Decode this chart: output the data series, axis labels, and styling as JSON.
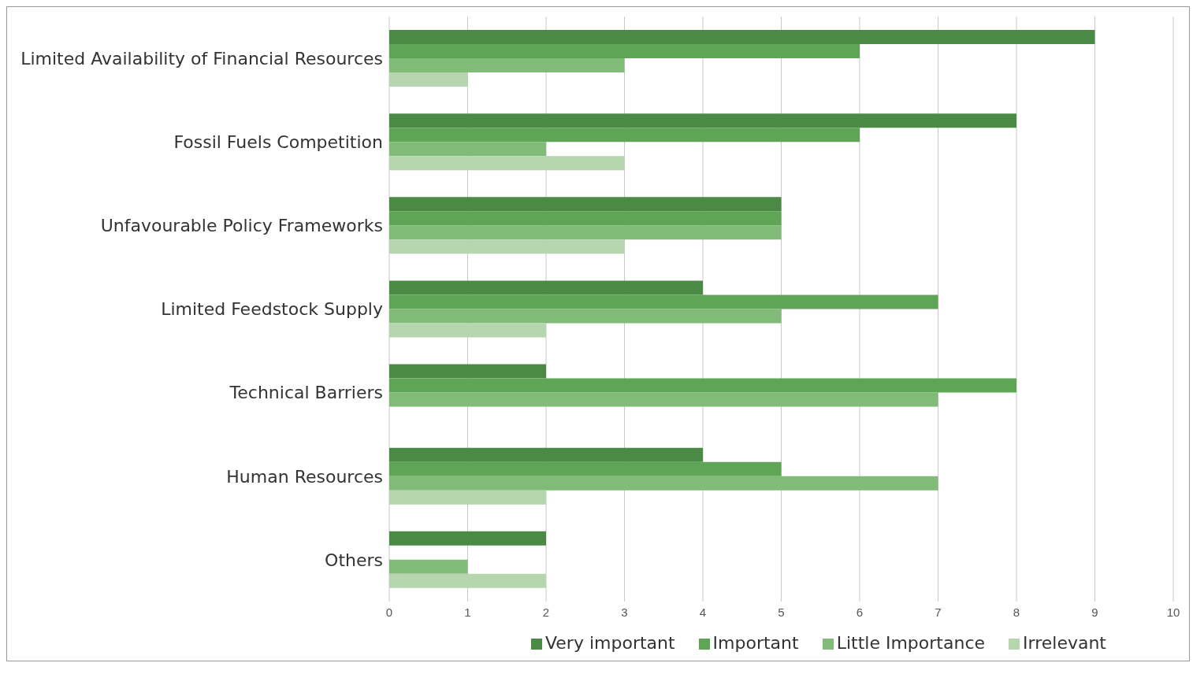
{
  "chart_data": {
    "type": "bar",
    "orientation": "horizontal",
    "categories": [
      "Limited Availability of Financial Resources",
      "Fossil Fuels Competition",
      "Unfavourable Policy Frameworks",
      "Limited Feedstock Supply",
      "Technical Barriers",
      "Human Resources",
      "Others"
    ],
    "series": [
      {
        "name": "Very important",
        "color": "#4a8a44",
        "values": [
          9,
          8,
          5,
          4,
          2,
          4,
          2
        ]
      },
      {
        "name": "Important",
        "color": "#5ea555",
        "values": [
          6,
          6,
          5,
          7,
          8,
          5,
          null
        ]
      },
      {
        "name": "Little Importance",
        "color": "#80bb78",
        "values": [
          3,
          2,
          5,
          5,
          7,
          7,
          1
        ]
      },
      {
        "name": "Irrelevant",
        "color": "#b5d6ae",
        "values": [
          1,
          3,
          3,
          2,
          null,
          2,
          2
        ]
      }
    ],
    "xlim": [
      0,
      10
    ],
    "xticks": [
      0,
      1,
      2,
      3,
      4,
      5,
      6,
      7,
      8,
      9,
      10
    ],
    "grid": "x",
    "legend": "bottom"
  }
}
